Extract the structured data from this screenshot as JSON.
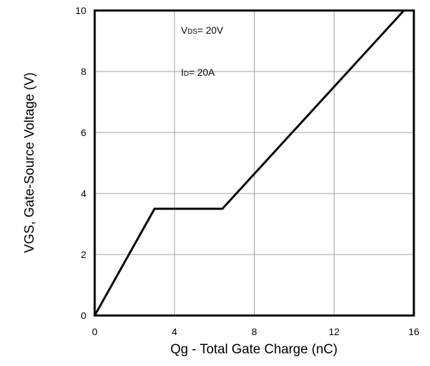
{
  "chart_data": {
    "type": "line",
    "xlabel": "Qg - Total Gate Charge (nC)",
    "ylabel": "VGS, Gate-Source Voltage (V)",
    "xlim": [
      0,
      16
    ],
    "ylim": [
      0,
      10
    ],
    "xticks": [
      0,
      4,
      8,
      12,
      16
    ],
    "yticks": [
      0,
      2,
      4,
      6,
      8,
      10
    ],
    "grid": true,
    "annotations": [
      {
        "main": "V",
        "sub": "DS",
        "rest": "= 20V"
      },
      {
        "main": "I",
        "sub": "D",
        "rest": "= 20A"
      }
    ],
    "series": [
      {
        "x": [
          0,
          3.0,
          6.4,
          15.5
        ],
        "y": [
          0,
          3.5,
          3.5,
          10
        ],
        "color": "#000000"
      }
    ]
  }
}
